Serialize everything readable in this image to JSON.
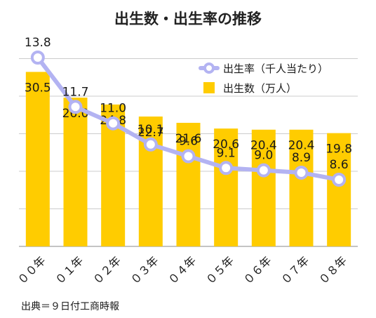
{
  "chart_data": {
    "type": "bar",
    "title": "出生数・出生率の推移",
    "categories": [
      "００年",
      "０１年",
      "０２年",
      "０３年",
      "０４年",
      "０５年",
      "０６年",
      "０７年",
      "０８年"
    ],
    "series": [
      {
        "name": "出生数（万人）",
        "type": "bar",
        "values": [
          30.5,
          26.0,
          24.8,
          22.7,
          21.6,
          20.6,
          20.4,
          20.4,
          19.8
        ],
        "labels": [
          "30.5",
          "26.0",
          "24.8",
          "22.7",
          "21.6",
          "20.6",
          "20.4",
          "20.4",
          "19.8"
        ]
      },
      {
        "name": "出生率（千人当たり）",
        "type": "line",
        "values": [
          13.8,
          11.7,
          11.0,
          10.1,
          9.6,
          9.1,
          9.0,
          8.9,
          8.6
        ],
        "labels": [
          "13.8",
          "11.7",
          "11.0",
          "10.1",
          "9.6",
          "9.1",
          "9.0",
          "8.9",
          "8.6"
        ]
      }
    ],
    "legend_position": "top-right",
    "grid": true,
    "colors": {
      "bar": "#ffcc00",
      "line": "#b3b3f2",
      "grid": "#cccccc"
    }
  },
  "source": "出典＝９日付工商時報"
}
